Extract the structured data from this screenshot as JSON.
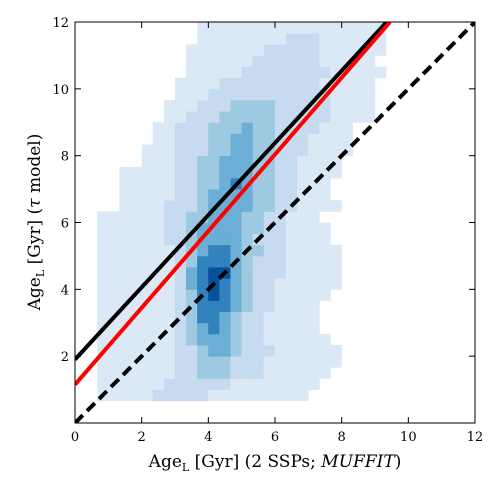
{
  "chart_data": {
    "type": "heatmap",
    "title": "",
    "xlabel": {
      "main": "Age",
      "sub": "L",
      "rest": " [Gyr] (2 SSPs; ",
      "italic": "MUFFIT",
      "close": ")"
    },
    "ylabel": {
      "main": "Age",
      "sub": "L",
      "rest": " [Gyr] (",
      "symbol": "τ",
      "close": " model)"
    },
    "xlim": [
      0,
      12
    ],
    "ylim": [
      0,
      12
    ],
    "xticks": [
      "0",
      "2",
      "4",
      "6",
      "8",
      "10",
      "12"
    ],
    "yticks": [
      "2",
      "4",
      "6",
      "8",
      "10",
      "12"
    ],
    "grid": false,
    "bin_size": 0.333,
    "colormap": [
      "#dbe9f6",
      "#c6dbef",
      "#9ecae1",
      "#6baed6",
      "#3182bd",
      "#08519c"
    ],
    "density_rows": [
      {
        "y0": 0.667,
        "x_start": 0.667,
        "levels": [
          1,
          1,
          1,
          1,
          1,
          2,
          2,
          2,
          2,
          2,
          1,
          1,
          1,
          1,
          1,
          1,
          1,
          1,
          1
        ]
      },
      {
        "y0": 1.0,
        "x_start": 0.667,
        "levels": [
          1,
          1,
          1,
          1,
          1,
          1,
          2,
          2,
          2,
          2,
          2,
          2,
          1,
          1,
          1,
          1,
          1,
          1,
          1,
          1
        ]
      },
      {
        "y0": 1.333,
        "x_start": 0.667,
        "levels": [
          1,
          1,
          1,
          1,
          1,
          1,
          1,
          2,
          2,
          3,
          3,
          3,
          2,
          2,
          2,
          1,
          1,
          1,
          1,
          1,
          1
        ]
      },
      {
        "y0": 1.667,
        "x_start": 0.667,
        "levels": [
          1,
          1,
          1,
          1,
          1,
          1,
          1,
          2,
          2,
          3,
          3,
          3,
          2,
          2,
          2,
          1,
          1,
          1,
          1,
          1,
          1,
          1
        ]
      },
      {
        "y0": 2.0,
        "x_start": 0.667,
        "levels": [
          1,
          1,
          1,
          1,
          1,
          1,
          1,
          2,
          2,
          3,
          4,
          4,
          3,
          2,
          2,
          2,
          1,
          1,
          1,
          1,
          1,
          1
        ]
      },
      {
        "y0": 2.333,
        "x_start": 0.667,
        "levels": [
          1,
          1,
          1,
          1,
          1,
          1,
          1,
          2,
          3,
          4,
          4,
          4,
          3,
          2,
          2,
          1,
          1,
          1,
          1,
          1,
          1
        ]
      },
      {
        "y0": 2.667,
        "x_start": 0.667,
        "levels": [
          1,
          1,
          1,
          1,
          1,
          1,
          1,
          2,
          3,
          4,
          5,
          4,
          3,
          2,
          2,
          1,
          1,
          1,
          1,
          1
        ]
      },
      {
        "y0": 3.0,
        "x_start": 0.667,
        "levels": [
          1,
          1,
          1,
          1,
          1,
          1,
          1,
          2,
          3,
          5,
          5,
          4,
          3,
          2,
          2,
          1,
          1,
          1,
          1,
          1
        ]
      },
      {
        "y0": 3.333,
        "x_start": 0.667,
        "levels": [
          1,
          1,
          1,
          1,
          1,
          1,
          1,
          2,
          3,
          5,
          5,
          5,
          4,
          3,
          2,
          2,
          1,
          1,
          1,
          1
        ]
      },
      {
        "y0": 3.667,
        "x_start": 0.667,
        "levels": [
          1,
          1,
          1,
          1,
          1,
          1,
          1,
          2,
          3,
          5,
          6,
          5,
          4,
          3,
          2,
          2,
          1,
          1,
          1,
          1,
          1
        ]
      },
      {
        "y0": 4.0,
        "x_start": 0.667,
        "levels": [
          1,
          1,
          1,
          1,
          1,
          1,
          1,
          2,
          4,
          5,
          6,
          5,
          4,
          3,
          2,
          2,
          1,
          1,
          1,
          1,
          1,
          1
        ]
      },
      {
        "y0": 4.333,
        "x_start": 0.667,
        "levels": [
          1,
          1,
          1,
          1,
          1,
          1,
          1,
          2,
          4,
          5,
          6,
          6,
          4,
          3,
          2,
          2,
          2,
          1,
          1,
          1,
          1,
          1
        ]
      },
      {
        "y0": 4.667,
        "x_start": 0.667,
        "levels": [
          1,
          1,
          1,
          1,
          1,
          1,
          1,
          2,
          3,
          5,
          5,
          5,
          4,
          3,
          2,
          2,
          2,
          1,
          1,
          1,
          1,
          1
        ]
      },
      {
        "y0": 5.0,
        "x_start": 0.667,
        "levels": [
          1,
          1,
          1,
          1,
          1,
          1,
          1,
          2,
          3,
          4,
          5,
          5,
          4,
          3,
          3,
          2,
          2,
          1,
          1,
          1,
          1,
          1
        ]
      },
      {
        "y0": 5.333,
        "x_start": 0.667,
        "levels": [
          1,
          1,
          1,
          1,
          1,
          1,
          2,
          2,
          3,
          4,
          4,
          4,
          4,
          3,
          2,
          2,
          2,
          1,
          1,
          1,
          1
        ]
      },
      {
        "y0": 5.667,
        "x_start": 0.667,
        "levels": [
          1,
          1,
          1,
          1,
          1,
          1,
          2,
          2,
          3,
          4,
          4,
          4,
          4,
          3,
          3,
          2,
          2,
          1,
          1,
          1,
          1
        ]
      },
      {
        "y0": 6.0,
        "x_start": 0.667,
        "levels": [
          1,
          1,
          1,
          1,
          1,
          1,
          2,
          2,
          3,
          3,
          4,
          4,
          4,
          3,
          3,
          2,
          2,
          1,
          1,
          1
        ]
      },
      {
        "y0": 6.333,
        "x_start": 1.333,
        "levels": [
          1,
          1,
          1,
          1,
          2,
          2,
          2,
          3,
          4,
          4,
          4,
          4,
          3,
          3,
          2,
          2,
          1,
          1,
          1,
          1
        ]
      },
      {
        "y0": 6.667,
        "x_start": 1.333,
        "levels": [
          1,
          1,
          1,
          1,
          1,
          2,
          2,
          3,
          4,
          4,
          4,
          4,
          3,
          3,
          2,
          2,
          1,
          1,
          1
        ]
      },
      {
        "y0": 7.0,
        "x_start": 1.333,
        "levels": [
          1,
          1,
          1,
          1,
          1,
          2,
          2,
          3,
          3,
          4,
          5,
          4,
          3,
          3,
          2,
          2,
          1,
          1,
          1
        ]
      },
      {
        "y0": 7.333,
        "x_start": 1.333,
        "levels": [
          1,
          1,
          1,
          1,
          1,
          2,
          2,
          3,
          3,
          4,
          4,
          4,
          3,
          3,
          2,
          2,
          1,
          1,
          1,
          1
        ]
      },
      {
        "y0": 7.667,
        "x_start": 2.0,
        "levels": [
          1,
          1,
          1,
          2,
          2,
          3,
          3,
          4,
          4,
          4,
          3,
          3,
          2,
          2,
          1,
          1,
          1,
          1
        ]
      },
      {
        "y0": 8.0,
        "x_start": 2.0,
        "levels": [
          1,
          1,
          1,
          2,
          2,
          2,
          3,
          3,
          4,
          4,
          3,
          3,
          2,
          2,
          2,
          1,
          1,
          1,
          1
        ]
      },
      {
        "y0": 8.333,
        "x_start": 2.333,
        "levels": [
          1,
          1,
          2,
          2,
          2,
          3,
          3,
          4,
          4,
          3,
          3,
          2,
          2,
          2,
          1,
          1,
          1,
          1
        ]
      },
      {
        "y0": 8.667,
        "x_start": 2.333,
        "levels": [
          1,
          1,
          2,
          2,
          2,
          3,
          3,
          3,
          4,
          3,
          3,
          2,
          2,
          2,
          2,
          1,
          1,
          1
        ]
      },
      {
        "y0": 9.0,
        "x_start": 2.667,
        "levels": [
          1,
          1,
          2,
          2,
          2,
          3,
          3,
          3,
          3,
          3,
          2,
          2,
          2,
          2,
          2,
          1,
          1,
          1,
          1
        ]
      },
      {
        "y0": 9.333,
        "x_start": 2.667,
        "levels": [
          1,
          1,
          1,
          2,
          2,
          2,
          3,
          3,
          3,
          3,
          2,
          2,
          2,
          2,
          2,
          1,
          1,
          1,
          1
        ]
      },
      {
        "y0": 9.667,
        "x_start": 3.0,
        "levels": [
          1,
          1,
          1,
          2,
          2,
          2,
          2,
          2,
          2,
          2,
          2,
          2,
          2,
          2,
          1,
          1,
          1,
          1
        ]
      },
      {
        "y0": 10.0,
        "x_start": 3.0,
        "levels": [
          1,
          1,
          1,
          1,
          2,
          2,
          2,
          2,
          2,
          2,
          2,
          2,
          2,
          1,
          1,
          1,
          1,
          1
        ]
      },
      {
        "y0": 10.333,
        "x_start": 3.333,
        "levels": [
          1,
          1,
          1,
          1,
          1,
          2,
          2,
          2,
          2,
          2,
          2,
          2,
          2,
          1,
          1,
          1,
          1,
          1
        ]
      },
      {
        "y0": 10.667,
        "x_start": 3.333,
        "levels": [
          1,
          1,
          1,
          1,
          1,
          1,
          2,
          2,
          2,
          2,
          2,
          2,
          1,
          1,
          1,
          1,
          1
        ]
      },
      {
        "y0": 11.0,
        "x_start": 3.333,
        "levels": [
          1,
          1,
          1,
          1,
          1,
          1,
          1,
          2,
          2,
          2,
          2,
          2,
          1,
          1,
          1,
          1,
          1,
          1
        ]
      },
      {
        "y0": 11.333,
        "x_start": 3.667,
        "levels": [
          1,
          1,
          1,
          1,
          1,
          1,
          1,
          1,
          2,
          2,
          2,
          1,
          1,
          1,
          1,
          1,
          1
        ]
      },
      {
        "y0": 11.667,
        "x_start": 3.667,
        "levels": [
          1,
          1,
          1,
          1,
          1,
          1,
          1,
          1,
          1,
          1,
          1,
          1,
          1,
          1,
          1,
          1,
          1
        ]
      }
    ],
    "lines": [
      {
        "kind": "one-to-one",
        "color": "#000000",
        "style": "dashed",
        "points": [
          [
            0,
            0
          ],
          [
            12,
            12
          ]
        ]
      },
      {
        "kind": "fit",
        "color": "#000000",
        "style": "solid",
        "points": [
          [
            0,
            1.9
          ],
          [
            9.35,
            12
          ]
        ]
      },
      {
        "kind": "fit",
        "color": "#ff0000",
        "style": "solid",
        "points": [
          [
            0,
            1.15
          ],
          [
            9.45,
            12
          ]
        ]
      }
    ]
  }
}
